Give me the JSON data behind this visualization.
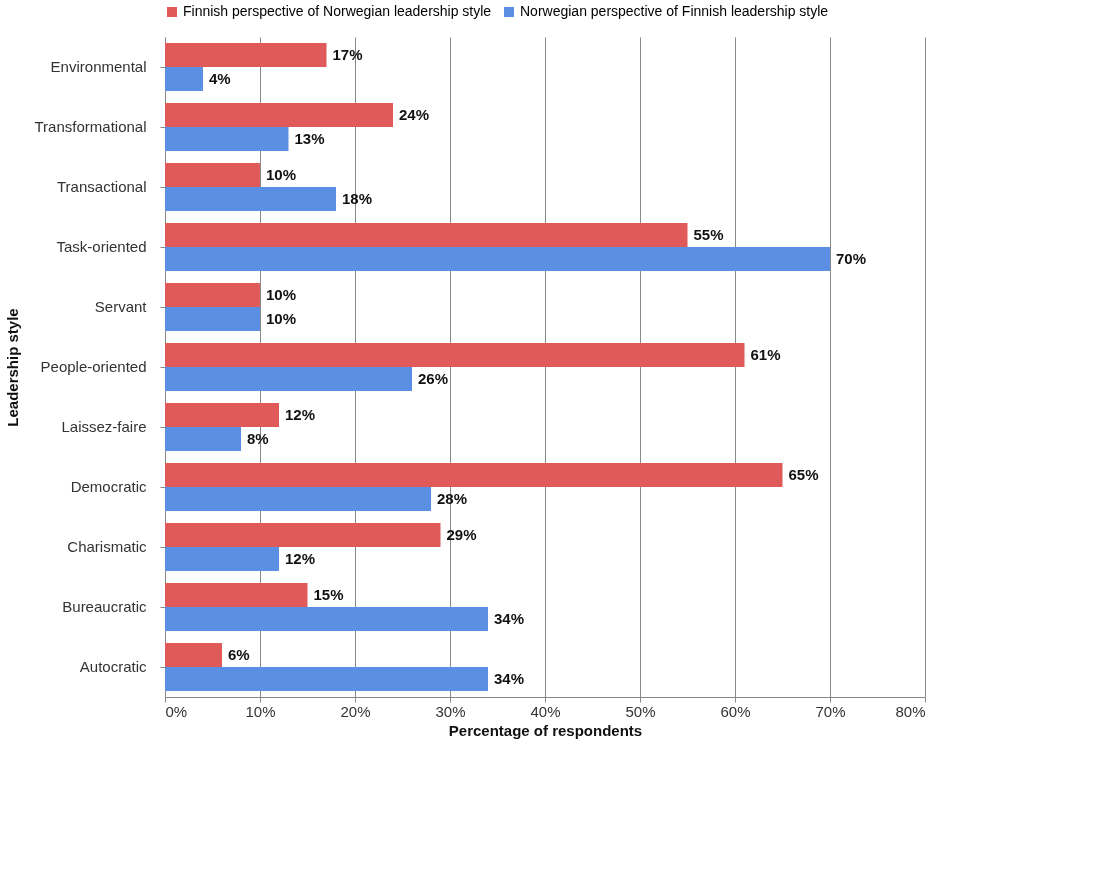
{
  "chart_data": {
    "type": "bar",
    "orientation": "horizontal",
    "xlabel": "Percentage of respondents",
    "ylabel": "Leadership style",
    "categories": [
      "Environmental",
      "Transformational",
      "Transactional",
      "Task-oriented",
      "Servant",
      "People-oriented",
      "Laissez-faire",
      "Democratic",
      "Charismatic",
      "Bureaucratic",
      "Autocratic"
    ],
    "series": [
      {
        "name": "Finnish perspective of Norwegian leadership style",
        "color": "#e05a5a",
        "values": [
          17,
          24,
          10,
          55,
          10,
          61,
          12,
          65,
          29,
          15,
          6
        ],
        "value_labels": [
          "17%",
          "24%",
          "10%",
          "55%",
          "10%",
          "61%",
          "12%",
          "65%",
          "29%",
          "15%",
          "6%"
        ]
      },
      {
        "name": "Norwegian perspective of Finnish leadership style",
        "color": "#5b8fe3",
        "values": [
          4,
          13,
          18,
          70,
          10,
          26,
          8,
          28,
          12,
          34,
          34
        ],
        "value_labels": [
          "4%",
          "13%",
          "18%",
          "70%",
          "10%",
          "26%",
          "8%",
          "28%",
          "12%",
          "34%",
          "34%"
        ]
      }
    ],
    "xlim": [
      0,
      80
    ],
    "xticks": [
      {
        "value": 0,
        "label": "0%"
      },
      {
        "value": 10,
        "label": "10%"
      },
      {
        "value": 20,
        "label": "20%"
      },
      {
        "value": 30,
        "label": "30%"
      },
      {
        "value": 40,
        "label": "40%"
      },
      {
        "value": 50,
        "label": "50%"
      },
      {
        "value": 60,
        "label": "60%"
      },
      {
        "value": 70,
        "label": "70%"
      },
      {
        "value": 80,
        "label": "80%"
      }
    ],
    "grid": "x",
    "legend": "top"
  }
}
